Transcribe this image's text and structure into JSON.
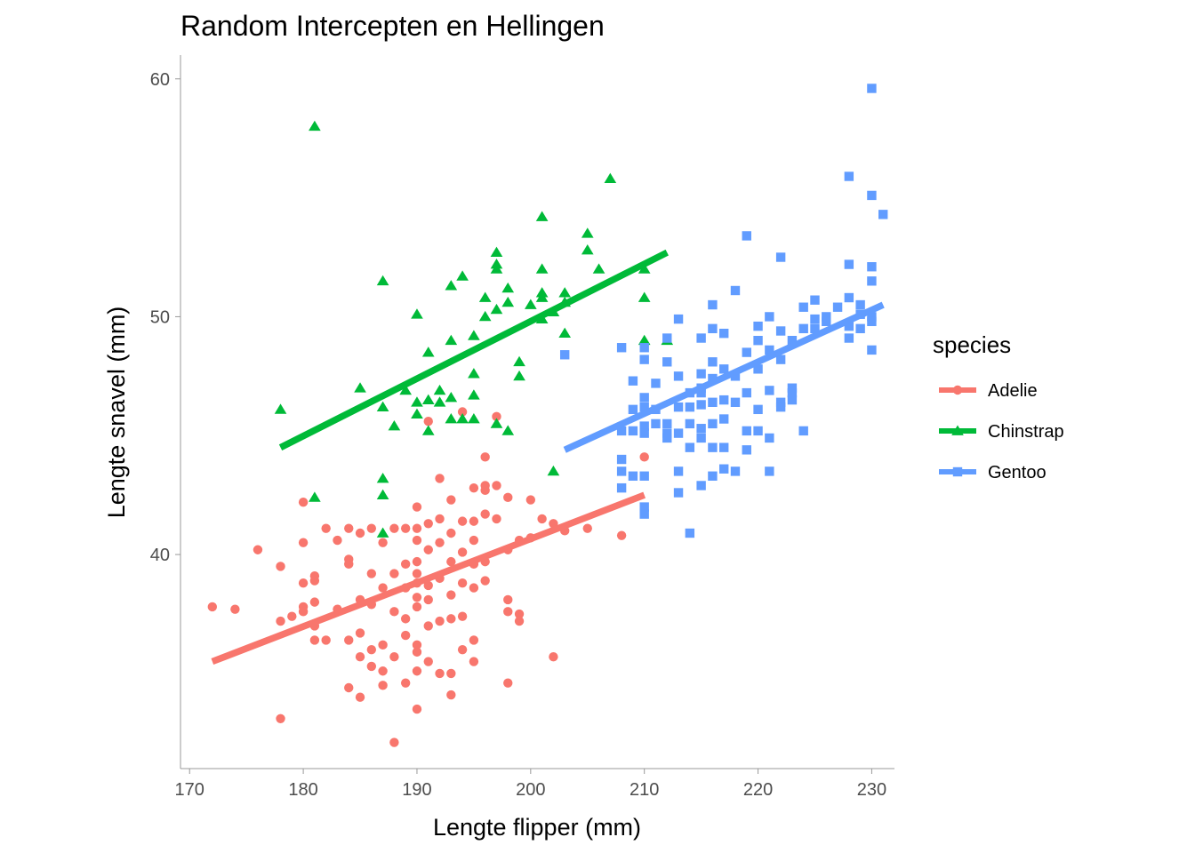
{
  "chart_data": {
    "type": "scatter",
    "title": "Random Intercepten en Hellingen",
    "xlabel": "Lengte flipper (mm)",
    "ylabel": "Lengte snavel (mm)",
    "xlim": [
      169.2,
      232
    ],
    "ylim": [
      31,
      61
    ],
    "xticks": [
      "170",
      "180",
      "190",
      "200",
      "210",
      "220",
      "230"
    ],
    "yticks": [
      "40",
      "50",
      "60"
    ],
    "grid": false,
    "legend": {
      "title": "species",
      "placement": "right"
    },
    "series": [
      {
        "name": "Adelie",
        "color": "#F8766D",
        "marker": "circle",
        "fit_line": [
          [
            172,
            35.5
          ],
          [
            210,
            42.5
          ]
        ],
        "points": [
          [
            172,
            37.8
          ],
          [
            174,
            37.7
          ],
          [
            176,
            40.2
          ],
          [
            178,
            39.5
          ],
          [
            178,
            37.2
          ],
          [
            178,
            33.1
          ],
          [
            179,
            37.4
          ],
          [
            180,
            42.2
          ],
          [
            180,
            40.5
          ],
          [
            180,
            38.8
          ],
          [
            180,
            37.8
          ],
          [
            180,
            37.6
          ],
          [
            181,
            39.1
          ],
          [
            181,
            38.9
          ],
          [
            181,
            38.0
          ],
          [
            181,
            37.0
          ],
          [
            181,
            36.4
          ],
          [
            182,
            41.1
          ],
          [
            182,
            36.4
          ],
          [
            183,
            40.6
          ],
          [
            183,
            37.7
          ],
          [
            184,
            41.1
          ],
          [
            184,
            39.8
          ],
          [
            184,
            39.6
          ],
          [
            184,
            36.4
          ],
          [
            184,
            34.4
          ],
          [
            185,
            40.9
          ],
          [
            185,
            38.1
          ],
          [
            185,
            36.7
          ],
          [
            185,
            35.7
          ],
          [
            185,
            34.0
          ],
          [
            186,
            41.1
          ],
          [
            186,
            39.2
          ],
          [
            186,
            37.9
          ],
          [
            186,
            36.0
          ],
          [
            186,
            35.3
          ],
          [
            187,
            40.5
          ],
          [
            187,
            38.6
          ],
          [
            187,
            36.2
          ],
          [
            187,
            35.1
          ],
          [
            187,
            34.5
          ],
          [
            188,
            41.1
          ],
          [
            188,
            39.2
          ],
          [
            188,
            37.6
          ],
          [
            188,
            35.7
          ],
          [
            188,
            32.1
          ],
          [
            189,
            41.1
          ],
          [
            189,
            39.6
          ],
          [
            189,
            38.6
          ],
          [
            189,
            37.3
          ],
          [
            189,
            36.6
          ],
          [
            189,
            34.6
          ],
          [
            190,
            42.0
          ],
          [
            190,
            41.1
          ],
          [
            190,
            40.6
          ],
          [
            190,
            39.7
          ],
          [
            190,
            39.2
          ],
          [
            190,
            38.8
          ],
          [
            190,
            38.2
          ],
          [
            190,
            37.8
          ],
          [
            190,
            36.2
          ],
          [
            190,
            35.9
          ],
          [
            190,
            35.1
          ],
          [
            190,
            33.5
          ],
          [
            191,
            45.6
          ],
          [
            191,
            41.3
          ],
          [
            191,
            40.2
          ],
          [
            191,
            38.7
          ],
          [
            191,
            38.1
          ],
          [
            191,
            37.0
          ],
          [
            191,
            35.5
          ],
          [
            192,
            43.2
          ],
          [
            192,
            41.5
          ],
          [
            192,
            40.5
          ],
          [
            192,
            39.0
          ],
          [
            192,
            37.2
          ],
          [
            192,
            35.0
          ],
          [
            193,
            42.3
          ],
          [
            193,
            40.9
          ],
          [
            193,
            39.7
          ],
          [
            193,
            38.3
          ],
          [
            193,
            37.3
          ],
          [
            193,
            35.0
          ],
          [
            193,
            34.1
          ],
          [
            194,
            46.0
          ],
          [
            194,
            41.4
          ],
          [
            194,
            40.1
          ],
          [
            194,
            38.8
          ],
          [
            194,
            37.4
          ],
          [
            194,
            36.0
          ],
          [
            195,
            42.8
          ],
          [
            195,
            41.4
          ],
          [
            195,
            40.6
          ],
          [
            195,
            39.6
          ],
          [
            195,
            38.6
          ],
          [
            195,
            36.4
          ],
          [
            195,
            35.5
          ],
          [
            196,
            44.1
          ],
          [
            196,
            42.9
          ],
          [
            196,
            42.7
          ],
          [
            196,
            41.7
          ],
          [
            196,
            39.7
          ],
          [
            196,
            38.9
          ],
          [
            197,
            45.8
          ],
          [
            197,
            42.9
          ],
          [
            197,
            41.5
          ],
          [
            198,
            42.4
          ],
          [
            198,
            40.2
          ],
          [
            198,
            38.1
          ],
          [
            198,
            37.6
          ],
          [
            198,
            34.6
          ],
          [
            199,
            40.6
          ],
          [
            199,
            37.5
          ],
          [
            199,
            37.2
          ],
          [
            200,
            42.3
          ],
          [
            200,
            40.7
          ],
          [
            201,
            41.5
          ],
          [
            202,
            41.3
          ],
          [
            202,
            35.7
          ],
          [
            203,
            41.0
          ],
          [
            205,
            41.1
          ],
          [
            208,
            40.8
          ],
          [
            210,
            44.1
          ]
        ]
      },
      {
        "name": "Chinstrap",
        "color": "#00BA38",
        "marker": "triangle",
        "fit_line": [
          [
            178,
            44.5
          ],
          [
            212,
            52.7
          ]
        ],
        "points": [
          [
            178,
            46.1
          ],
          [
            181,
            58.0
          ],
          [
            181,
            42.4
          ],
          [
            185,
            47.0
          ],
          [
            187,
            51.5
          ],
          [
            187,
            46.2
          ],
          [
            187,
            43.2
          ],
          [
            187,
            42.5
          ],
          [
            187,
            40.9
          ],
          [
            188,
            45.4
          ],
          [
            189,
            46.9
          ],
          [
            190,
            50.1
          ],
          [
            190,
            46.4
          ],
          [
            190,
            45.9
          ],
          [
            191,
            48.5
          ],
          [
            191,
            46.5
          ],
          [
            191,
            45.2
          ],
          [
            192,
            46.9
          ],
          [
            192,
            46.4
          ],
          [
            193,
            51.3
          ],
          [
            193,
            49.0
          ],
          [
            193,
            46.6
          ],
          [
            193,
            45.7
          ],
          [
            194,
            51.7
          ],
          [
            194,
            45.7
          ],
          [
            195,
            49.2
          ],
          [
            195,
            47.6
          ],
          [
            195,
            46.7
          ],
          [
            195,
            45.7
          ],
          [
            196,
            50.8
          ],
          [
            196,
            50.0
          ],
          [
            197,
            52.7
          ],
          [
            197,
            52.2
          ],
          [
            197,
            52.0
          ],
          [
            197,
            50.3
          ],
          [
            197,
            45.5
          ],
          [
            198,
            51.2
          ],
          [
            198,
            50.6
          ],
          [
            198,
            45.2
          ],
          [
            199,
            48.1
          ],
          [
            199,
            47.5
          ],
          [
            200,
            50.5
          ],
          [
            201,
            54.2
          ],
          [
            201,
            52.0
          ],
          [
            201,
            51.0
          ],
          [
            201,
            50.8
          ],
          [
            201,
            49.9
          ],
          [
            202,
            50.2
          ],
          [
            202,
            43.5
          ],
          [
            203,
            51.0
          ],
          [
            203,
            50.6
          ],
          [
            203,
            49.3
          ],
          [
            205,
            53.5
          ],
          [
            205,
            52.8
          ],
          [
            206,
            52.0
          ],
          [
            207,
            55.8
          ],
          [
            210,
            52.0
          ],
          [
            210,
            50.8
          ],
          [
            210,
            49.0
          ],
          [
            212,
            49.0
          ]
        ]
      },
      {
        "name": "Gentoo",
        "color": "#619CFF",
        "marker": "square",
        "fit_line": [
          [
            203,
            44.4
          ],
          [
            231,
            50.5
          ]
        ],
        "points": [
          [
            203,
            48.4
          ],
          [
            208,
            48.7
          ],
          [
            208,
            45.2
          ],
          [
            208,
            44.0
          ],
          [
            208,
            43.5
          ],
          [
            208,
            42.8
          ],
          [
            209,
            47.3
          ],
          [
            209,
            46.1
          ],
          [
            209,
            45.2
          ],
          [
            209,
            43.3
          ],
          [
            210,
            48.7
          ],
          [
            210,
            48.2
          ],
          [
            210,
            46.6
          ],
          [
            210,
            46.2
          ],
          [
            210,
            45.4
          ],
          [
            210,
            45.1
          ],
          [
            210,
            43.3
          ],
          [
            210,
            42.0
          ],
          [
            210,
            41.7
          ],
          [
            211,
            47.2
          ],
          [
            211,
            46.1
          ],
          [
            211,
            45.5
          ],
          [
            212,
            49.1
          ],
          [
            212,
            48.1
          ],
          [
            212,
            45.5
          ],
          [
            212,
            45.1
          ],
          [
            212,
            44.9
          ],
          [
            213,
            49.9
          ],
          [
            213,
            47.5
          ],
          [
            213,
            46.2
          ],
          [
            213,
            45.1
          ],
          [
            213,
            43.5
          ],
          [
            213,
            42.6
          ],
          [
            214,
            46.8
          ],
          [
            214,
            46.2
          ],
          [
            214,
            45.5
          ],
          [
            214,
            44.5
          ],
          [
            214,
            40.9
          ],
          [
            215,
            49.1
          ],
          [
            215,
            47.6
          ],
          [
            215,
            47.0
          ],
          [
            215,
            46.8
          ],
          [
            215,
            46.3
          ],
          [
            215,
            45.3
          ],
          [
            215,
            44.9
          ],
          [
            215,
            42.9
          ],
          [
            216,
            50.5
          ],
          [
            216,
            49.5
          ],
          [
            216,
            48.1
          ],
          [
            216,
            47.4
          ],
          [
            216,
            46.4
          ],
          [
            216,
            45.5
          ],
          [
            216,
            44.5
          ],
          [
            216,
            43.3
          ],
          [
            217,
            49.3
          ],
          [
            217,
            47.8
          ],
          [
            217,
            46.5
          ],
          [
            217,
            45.7
          ],
          [
            217,
            44.5
          ],
          [
            217,
            43.6
          ],
          [
            218,
            51.1
          ],
          [
            218,
            47.5
          ],
          [
            218,
            46.4
          ],
          [
            218,
            43.5
          ],
          [
            219,
            53.4
          ],
          [
            219,
            48.5
          ],
          [
            219,
            46.8
          ],
          [
            219,
            45.2
          ],
          [
            219,
            44.4
          ],
          [
            220,
            49.6
          ],
          [
            220,
            49.0
          ],
          [
            220,
            47.8
          ],
          [
            220,
            46.1
          ],
          [
            220,
            45.2
          ],
          [
            221,
            50.0
          ],
          [
            221,
            48.6
          ],
          [
            221,
            46.9
          ],
          [
            221,
            44.9
          ],
          [
            221,
            43.5
          ],
          [
            222,
            52.5
          ],
          [
            222,
            49.4
          ],
          [
            222,
            48.2
          ],
          [
            222,
            46.4
          ],
          [
            222,
            46.2
          ],
          [
            223,
            49.0
          ],
          [
            223,
            47.0
          ],
          [
            223,
            46.8
          ],
          [
            223,
            46.5
          ],
          [
            224,
            50.4
          ],
          [
            224,
            49.5
          ],
          [
            224,
            45.2
          ],
          [
            225,
            50.7
          ],
          [
            225,
            49.9
          ],
          [
            225,
            49.5
          ],
          [
            226,
            50.0
          ],
          [
            226,
            49.8
          ],
          [
            227,
            50.4
          ],
          [
            228,
            50.8
          ],
          [
            228,
            49.6
          ],
          [
            228,
            49.1
          ],
          [
            228,
            52.2
          ],
          [
            228,
            55.9
          ],
          [
            229,
            50.5
          ],
          [
            229,
            50.1
          ],
          [
            229,
            49.5
          ],
          [
            230,
            59.6
          ],
          [
            230,
            55.1
          ],
          [
            230,
            52.1
          ],
          [
            230,
            51.5
          ],
          [
            230,
            50.0
          ],
          [
            230,
            49.8
          ],
          [
            230,
            48.6
          ],
          [
            231,
            54.3
          ]
        ]
      }
    ]
  }
}
